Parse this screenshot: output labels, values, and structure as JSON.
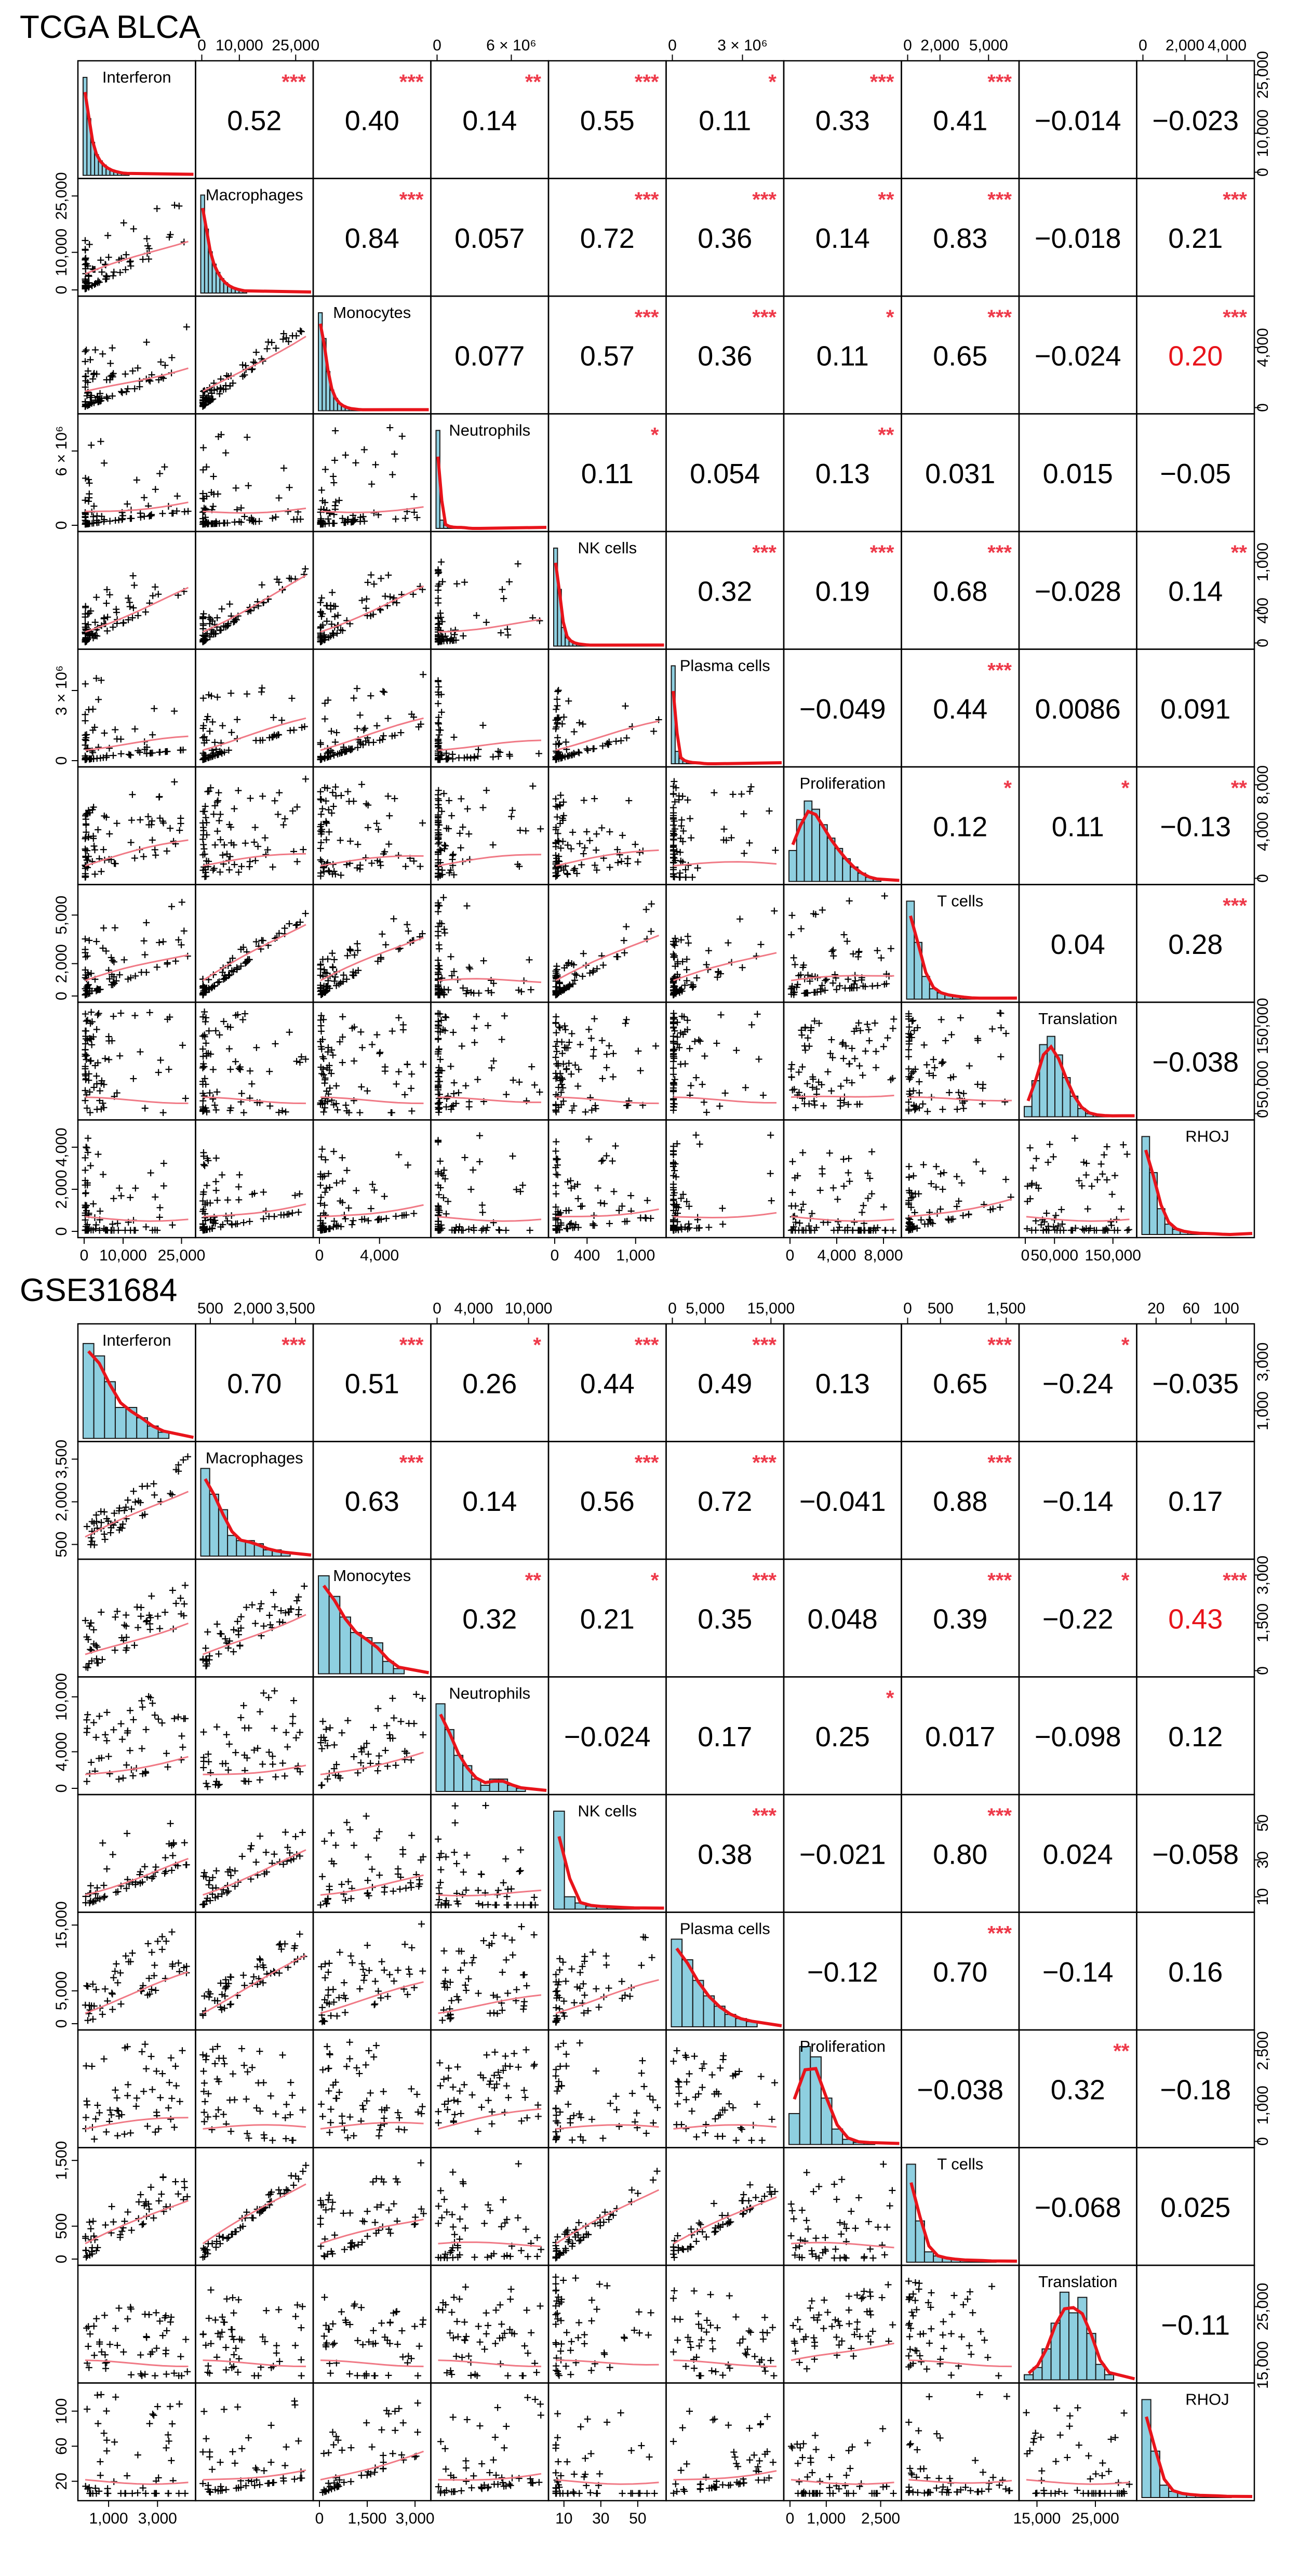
{
  "chart_data": [
    {
      "type": "scatter-matrix",
      "title": "TCGA BLCA",
      "variables": [
        "Interferon",
        "Macrophages",
        "Monocytes",
        "Neutrophils",
        "NK cells",
        "Plasma cells",
        "Proliferation",
        "T cells",
        "Translation",
        "RHOJ"
      ],
      "axis_ticks": {
        "Interferon": {
          "range": [
            0,
            27000
          ],
          "ticks": [
            0,
            10000,
            25000
          ],
          "labels": [
            "0",
            "10,000",
            "25,000"
          ]
        },
        "Macrophages": {
          "range": [
            0,
            28000
          ],
          "ticks": [
            0,
            10000,
            25000
          ],
          "labels": [
            "0",
            "10,000",
            "25,000"
          ]
        },
        "Monocytes": {
          "range": [
            0,
            7000
          ],
          "ticks": [
            0,
            4000
          ],
          "labels": [
            "0",
            "4,000"
          ]
        },
        "Neutrophils": {
          "range": [
            0,
            8500000
          ],
          "ticks": [
            0,
            6000000
          ],
          "labels": [
            "0",
            "6 × 10⁶"
          ]
        },
        "NK cells": {
          "range": [
            0,
            1300
          ],
          "ticks": [
            0,
            400,
            1000
          ],
          "labels": [
            "0",
            "400",
            "1,000"
          ]
        },
        "Plasma cells": {
          "range": [
            0,
            4500000
          ],
          "ticks": [
            0,
            3000000
          ],
          "labels": [
            "0",
            "3 × 10⁶"
          ]
        },
        "Proliferation": {
          "range": [
            0,
            9000
          ],
          "ticks": [
            0,
            4000,
            8000
          ],
          "labels": [
            "0",
            "4,000",
            "8,000"
          ]
        },
        "T cells": {
          "range": [
            0,
            6500
          ],
          "ticks": [
            0,
            2000,
            5000
          ],
          "labels": [
            "0",
            "2,000",
            "5,000"
          ]
        },
        "Translation": {
          "range": [
            0,
            180000
          ],
          "ticks": [
            0,
            50000,
            150000
          ],
          "labels": [
            "0",
            "50,000",
            "150,000"
          ]
        },
        "RHOJ": {
          "range": [
            0,
            5000
          ],
          "ticks": [
            0,
            2000,
            4000
          ],
          "labels": [
            "0",
            "2,000",
            "4,000"
          ]
        }
      },
      "correlations": [
        [
          "0.52",
          "0.40",
          "0.14",
          "0.55",
          "0.11",
          "0.33",
          "0.41",
          "−0.014",
          "−0.023"
        ],
        [
          "0.84",
          "0.057",
          "0.72",
          "0.36",
          "0.14",
          "0.83",
          "−0.018",
          "0.21"
        ],
        [
          "0.077",
          "0.57",
          "0.36",
          "0.11",
          "0.65",
          "−0.024",
          "0.20"
        ],
        [
          "0.11",
          "0.054",
          "0.13",
          "0.031",
          "0.015",
          "−0.05"
        ],
        [
          "0.32",
          "0.19",
          "0.68",
          "−0.028",
          "0.14"
        ],
        [
          "−0.049",
          "0.44",
          "0.0086",
          "0.091"
        ],
        [
          "0.12",
          "0.11",
          "−0.13"
        ],
        [
          "0.04",
          "0.28"
        ],
        [
          "−0.038"
        ]
      ],
      "significance": [
        [
          "***",
          "***",
          "**",
          "***",
          "*",
          "***",
          "***",
          "",
          ""
        ],
        [
          "***",
          "",
          "***",
          "***",
          "**",
          "***",
          "",
          "***"
        ],
        [
          "",
          "***",
          "***",
          "*",
          "***",
          "",
          "***"
        ],
        [
          "*",
          "",
          "**",
          "",
          "",
          ""
        ],
        [
          "***",
          "***",
          "***",
          "",
          "**"
        ],
        [
          "",
          "***",
          "",
          ""
        ],
        [
          "*",
          "*",
          "**"
        ],
        [
          "",
          "***"
        ],
        [
          ""
        ]
      ],
      "highlight": {
        "row": 2,
        "col": 9,
        "value": "0.20"
      },
      "histograms": [
        [
          0.95,
          0.55,
          0.32,
          0.2,
          0.14,
          0.1,
          0.07,
          0.05,
          0.04,
          0.03,
          0.02,
          0.02
        ],
        [
          0.95,
          0.62,
          0.4,
          0.28,
          0.2,
          0.14,
          0.1,
          0.07,
          0.05,
          0.04,
          0.03,
          0.02
        ],
        [
          0.95,
          0.7,
          0.38,
          0.2,
          0.12,
          0.07,
          0.05,
          0.03,
          0.02,
          0.02,
          0.01,
          0.01
        ],
        [
          0.95,
          0.08,
          0.03,
          0.02,
          0.01,
          0.01,
          0.01,
          0.01,
          0,
          0,
          0,
          0
        ],
        [
          0.95,
          0.55,
          0.18,
          0.08,
          0.05,
          0.03,
          0.02,
          0.02,
          0.01,
          0.01,
          0.01,
          0.01
        ],
        [
          0.95,
          0.12,
          0.05,
          0.03,
          0.02,
          0.01,
          0.01,
          0.01,
          0,
          0,
          0,
          0
        ],
        [
          0.3,
          0.6,
          0.78,
          0.7,
          0.55,
          0.42,
          0.32,
          0.22,
          0.14,
          0.08,
          0.04,
          0.02
        ],
        [
          0.95,
          0.55,
          0.22,
          0.1,
          0.06,
          0.04,
          0.03,
          0.02,
          0.01,
          0.01,
          0.01,
          0.01
        ],
        [
          0.1,
          0.35,
          0.7,
          0.78,
          0.6,
          0.38,
          0.2,
          0.08,
          0.03,
          0.02,
          0.01,
          0.01
        ],
        [
          0.95,
          0.6,
          0.25,
          0.1,
          0.05,
          0.03,
          0.02,
          0.01,
          0.01,
          0.01,
          0,
          0
        ]
      ],
      "point_count": 80,
      "skew": [
        3.2,
        3.0,
        2.8,
        6.0,
        3.5,
        6.0,
        1.6,
        3.0,
        1.2,
        3.5
      ]
    },
    {
      "type": "scatter-matrix",
      "title": "GSE31684",
      "variables": [
        "Interferon",
        "Macrophages",
        "Monocytes",
        "Neutrophils",
        "NK cells",
        "Plasma cells",
        "Proliferation",
        "T cells",
        "Translation",
        "RHOJ"
      ],
      "axis_ticks": {
        "Interferon": {
          "range": [
            0,
            4300
          ],
          "ticks": [
            1000,
            3000
          ],
          "labels": [
            "1,000",
            "3,000"
          ]
        },
        "Macrophages": {
          "range": [
            200,
            3900
          ],
          "ticks": [
            500,
            2000,
            3500
          ],
          "labels": [
            "500",
            "2,000",
            "3,500"
          ]
        },
        "Monocytes": {
          "range": [
            0,
            3300
          ],
          "ticks": [
            0,
            1500,
            3000
          ],
          "labels": [
            "0",
            "1,500",
            "3,000"
          ]
        },
        "Neutrophils": {
          "range": [
            0,
            11500
          ],
          "ticks": [
            0,
            4000,
            10000
          ],
          "labels": [
            "0",
            "4,000",
            "10,000"
          ]
        },
        "NK cells": {
          "range": [
            5,
            62
          ],
          "ticks": [
            10,
            30,
            50
          ],
          "labels": [
            "10",
            "30",
            "50"
          ]
        },
        "Plasma cells": {
          "range": [
            0,
            16000
          ],
          "ticks": [
            0,
            5000,
            15000
          ],
          "labels": [
            "0",
            "5,000",
            "15,000"
          ]
        },
        "Proliferation": {
          "range": [
            0,
            2900
          ],
          "ticks": [
            0,
            1000,
            2500
          ],
          "labels": [
            "0",
            "1,000",
            "2,500"
          ]
        },
        "T cells": {
          "range": [
            0,
            1600
          ],
          "ticks": [
            0,
            500,
            1500
          ],
          "labels": [
            "0",
            "500",
            "1,500"
          ]
        },
        "Translation": {
          "range": [
            13000,
            31000
          ],
          "ticks": [
            15000,
            25000
          ],
          "labels": [
            "15,000",
            "25,000"
          ]
        },
        "RHOJ": {
          "range": [
            5,
            125
          ],
          "ticks": [
            20,
            60,
            100
          ],
          "labels": [
            "20",
            "60",
            "100"
          ]
        }
      },
      "correlations": [
        [
          "0.70",
          "0.51",
          "0.26",
          "0.44",
          "0.49",
          "0.13",
          "0.65",
          "−0.24",
          "−0.035"
        ],
        [
          "0.63",
          "0.14",
          "0.56",
          "0.72",
          "−0.041",
          "0.88",
          "−0.14",
          "0.17"
        ],
        [
          "0.32",
          "0.21",
          "0.35",
          "0.048",
          "0.39",
          "−0.22",
          "0.43"
        ],
        [
          "−0.024",
          "0.17",
          "0.25",
          "0.017",
          "−0.098",
          "0.12"
        ],
        [
          "0.38",
          "−0.021",
          "0.80",
          "0.024",
          "−0.058"
        ],
        [
          "−0.12",
          "0.70",
          "−0.14",
          "0.16"
        ],
        [
          "−0.038",
          "0.32",
          "−0.18"
        ],
        [
          "−0.068",
          "0.025"
        ],
        [
          "−0.11"
        ]
      ],
      "significance": [
        [
          "***",
          "***",
          "*",
          "***",
          "***",
          "",
          "***",
          "*",
          ""
        ],
        [
          "***",
          "",
          "***",
          "***",
          "",
          "***",
          "",
          ""
        ],
        [
          "**",
          "*",
          "***",
          "",
          "***",
          "*",
          "***"
        ],
        [
          "",
          "",
          "*",
          "",
          "",
          ""
        ],
        [
          "***",
          "",
          "***",
          "",
          ""
        ],
        [
          "",
          "***",
          "",
          ""
        ],
        [
          "",
          "**",
          ""
        ],
        [
          "",
          ""
        ],
        [
          ""
        ]
      ],
      "highlight": {
        "row": 2,
        "col": 9,
        "value": "0.43"
      },
      "histograms": [
        [
          0.92,
          0.8,
          0.55,
          0.3,
          0.3,
          0.2,
          0.12,
          0.06
        ],
        [
          0.85,
          0.6,
          0.45,
          0.2,
          0.15,
          0.15,
          0.12,
          0.06,
          0.06,
          0.03
        ],
        [
          0.95,
          0.75,
          0.55,
          0.4,
          0.35,
          0.3,
          0.12,
          0.05
        ],
        [
          0.85,
          0.6,
          0.35,
          0.25,
          0.12,
          0.06,
          0.12,
          0.12,
          0.06,
          0.03
        ],
        [
          0.95,
          0.12,
          0.06,
          0.03,
          0.03,
          0.02,
          0.02,
          0.01
        ],
        [
          0.85,
          0.65,
          0.45,
          0.3,
          0.2,
          0.12,
          0.08,
          0.05
        ],
        [
          0.3,
          0.95,
          0.85,
          0.45,
          0.15,
          0.05,
          0.02,
          0.02
        ],
        [
          0.95,
          0.4,
          0.1,
          0.06,
          0.04,
          0.03,
          0.02,
          0.02,
          0.02,
          0.01
        ],
        [
          0.05,
          0.12,
          0.3,
          0.55,
          0.85,
          0.65,
          0.8,
          0.45,
          0.15,
          0.05
        ],
        [
          0.95,
          0.45,
          0.12,
          0.06,
          0.04,
          0.03,
          0.02,
          0.02,
          0.02,
          0.01
        ]
      ],
      "point_count": 55,
      "skew": [
        1.3,
        1.4,
        1.3,
        1.5,
        3.0,
        1.5,
        1.3,
        2.5,
        1.0,
        3.0
      ]
    }
  ]
}
